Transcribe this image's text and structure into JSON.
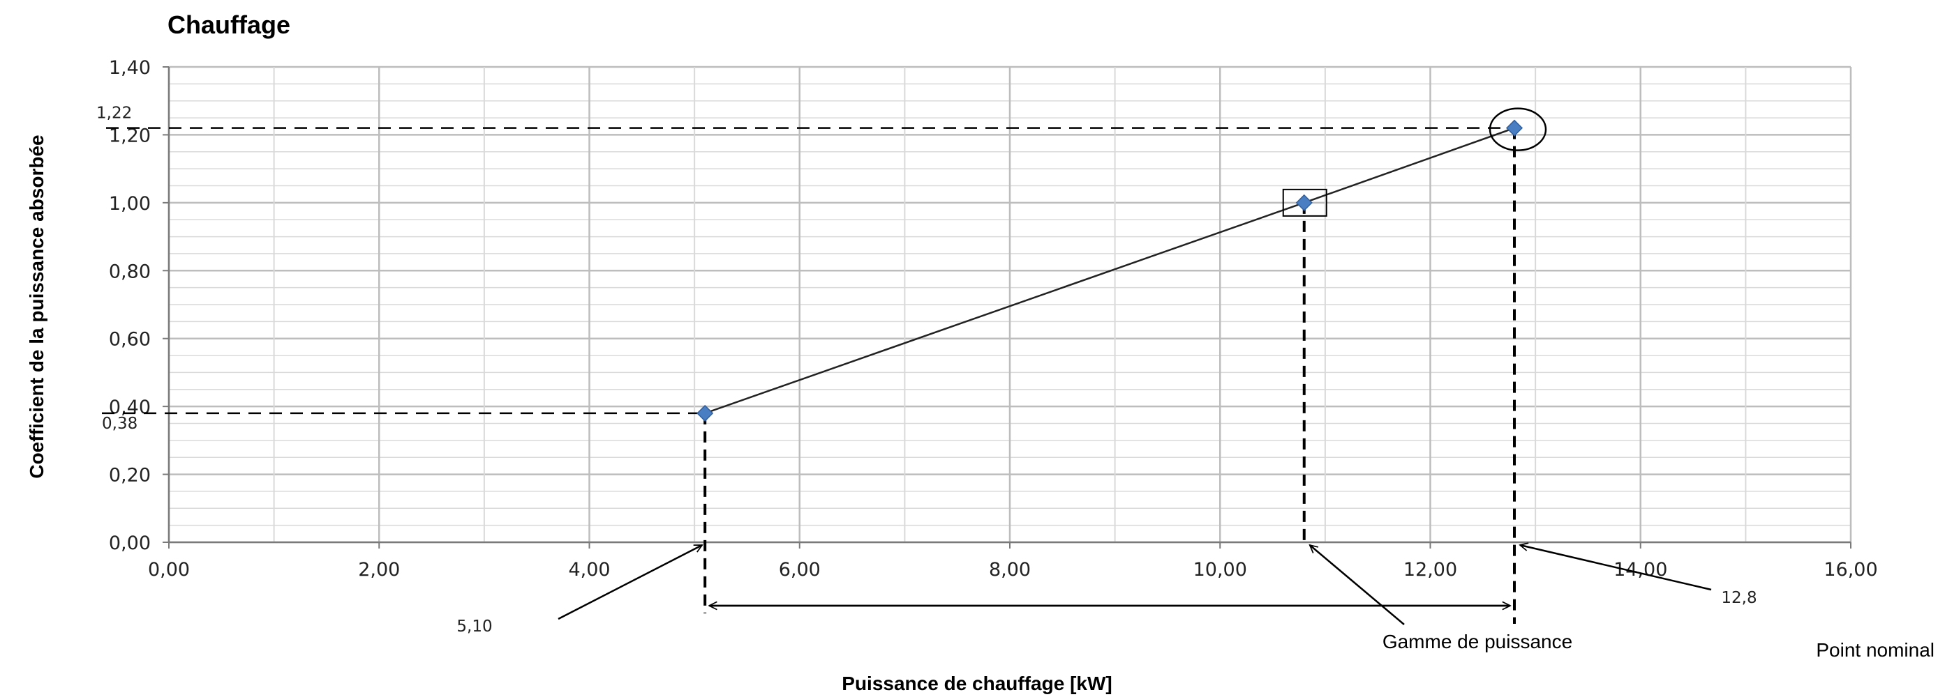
{
  "chart_data": {
    "type": "line",
    "title": "Chauffage",
    "xlabel": "Puissance de chauffage [kW]",
    "ylabel": "Coefficient de la puissance absorbée",
    "xlim": [
      0,
      16
    ],
    "ylim": [
      0,
      1.4
    ],
    "grid": true,
    "x_ticks": [
      0,
      2,
      4,
      6,
      8,
      10,
      12,
      14,
      16
    ],
    "x_tick_labels": [
      "0,00",
      "2,00",
      "4,00",
      "6,00",
      "8,00",
      "10,00",
      "12,00",
      "14,00",
      "16,00"
    ],
    "y_ticks": [
      0,
      0.2,
      0.4,
      0.6,
      0.8,
      1.0,
      1.2,
      1.4
    ],
    "y_tick_labels": [
      "0,00",
      "0,20",
      "0,40",
      "0,60",
      "0,80",
      "1,00",
      "1,20",
      "1,40"
    ],
    "series": [
      {
        "x": [
          5.1,
          10.8,
          12.8
        ],
        "y": [
          0.38,
          1.0,
          1.22
        ],
        "color": "#4a7ec2"
      }
    ],
    "annotations": {
      "x_min_label": "5,10",
      "x_nominal_label": "12,8",
      "y_min_label": "0,38",
      "y_nominal_label": "1,22",
      "range_label": "Gamme de puissance",
      "nominal_label": "Point nominal"
    },
    "colors": {
      "grid_major": "#bdbdbd",
      "grid_minor": "#d9d9d9",
      "marker": "#4a7ec2"
    }
  }
}
